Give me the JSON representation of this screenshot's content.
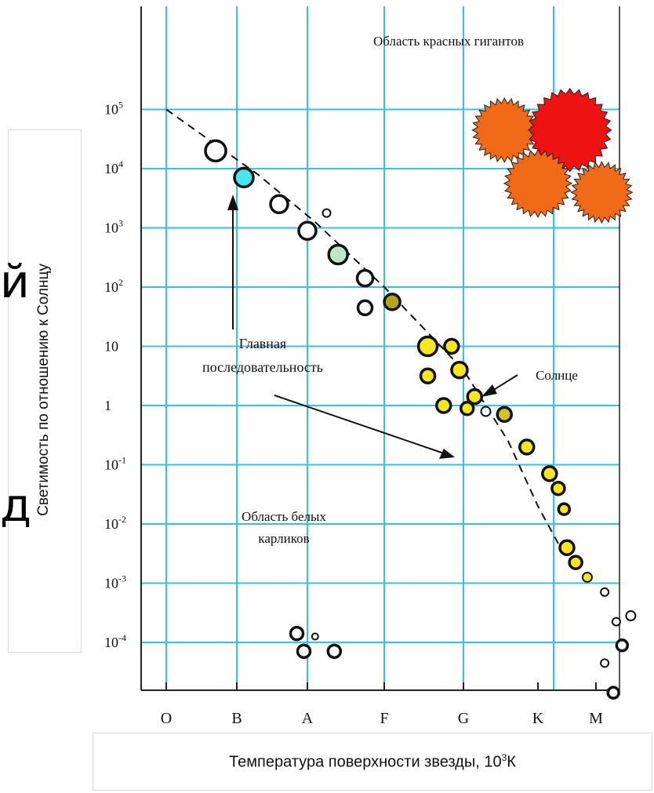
{
  "chart_data": {
    "type": "scatter",
    "title": "",
    "xlabel_main": "Температура поверхности звезды, 10",
    "xlabel_exp": "3",
    "xlabel_unit": "К",
    "ylabel": "Светимость по отношению к Солнцу",
    "x_categories": [
      "O",
      "B",
      "A",
      "F",
      "G",
      "K",
      "M"
    ],
    "y_ticks": [
      {
        "log": 5,
        "base": "10",
        "exp": "5"
      },
      {
        "log": 4,
        "base": "10",
        "exp": "4"
      },
      {
        "log": 3,
        "base": "10",
        "exp": "3"
      },
      {
        "log": 2,
        "base": "10",
        "exp": "2"
      },
      {
        "log": 1,
        "base": "10",
        "exp": ""
      },
      {
        "log": 0,
        "base": "1",
        "exp": ""
      },
      {
        "log": -1,
        "base": "10",
        "exp": "-1"
      },
      {
        "log": -2,
        "base": "10",
        "exp": "-2"
      },
      {
        "log": -3,
        "base": "10",
        "exp": "-3"
      },
      {
        "log": -4,
        "base": "10",
        "exp": "-4"
      }
    ],
    "ylim_log": [
      -5,
      5.8
    ],
    "grid": true,
    "main_sequence_line": [
      [
        0,
        5.0
      ],
      [
        1.3,
        3.9
      ],
      [
        2.1,
        3.1
      ],
      [
        3.0,
        2.0
      ],
      [
        4.0,
        0.6
      ],
      [
        4.6,
        -0.6
      ],
      [
        5.0,
        -1.7
      ],
      [
        5.5,
        -2.6
      ]
    ],
    "main_sequence_stars": [
      {
        "x": 0.7,
        "y": 4.3,
        "r": 13,
        "color": "#ffffff"
      },
      {
        "x": 1.1,
        "y": 3.85,
        "r": 12,
        "color": "#44e8ea"
      },
      {
        "x": 1.6,
        "y": 3.4,
        "r": 11,
        "color": "#ffffff"
      },
      {
        "x": 2.0,
        "y": 2.95,
        "r": 11,
        "color": "#ffffff"
      },
      {
        "x": 2.25,
        "y": 3.25,
        "r": 5,
        "color": "#ffffff"
      },
      {
        "x": 2.4,
        "y": 2.55,
        "r": 12,
        "color": "#bfe6c8"
      },
      {
        "x": 2.75,
        "y": 2.15,
        "r": 10,
        "color": "#ffffff"
      },
      {
        "x": 2.75,
        "y": 1.65,
        "r": 9,
        "color": "#ffffff"
      },
      {
        "x": 3.1,
        "y": 1.75,
        "r": 10,
        "color": "#b3a41c"
      },
      {
        "x": 3.55,
        "y": 1.0,
        "r": 12,
        "color": "#f7e51f"
      },
      {
        "x": 3.85,
        "y": 1.0,
        "r": 9,
        "color": "#f7e51f"
      },
      {
        "x": 3.55,
        "y": 0.5,
        "r": 9,
        "color": "#f7e51f"
      },
      {
        "x": 3.95,
        "y": 0.6,
        "r": 10,
        "color": "#f7e51f"
      },
      {
        "x": 3.75,
        "y": 0.0,
        "r": 9,
        "color": "#f7e51f"
      },
      {
        "x": 4.15,
        "y": 0.15,
        "r": 9,
        "color": "#f7e51f"
      },
      {
        "x": 4.05,
        "y": -0.05,
        "r": 8,
        "color": "#f7e51f"
      },
      {
        "x": 4.3,
        "y": -0.1,
        "r": 6,
        "color": "#ffffff"
      },
      {
        "x": 4.55,
        "y": -0.15,
        "r": 9,
        "color": "#cfc22a"
      },
      {
        "x": 4.85,
        "y": -0.7,
        "r": 9,
        "color": "#f7e51f"
      },
      {
        "x": 5.2,
        "y": -1.15,
        "r": 9,
        "color": "#f7e51f"
      },
      {
        "x": 5.35,
        "y": -1.4,
        "r": 8,
        "color": "#f7e51f"
      },
      {
        "x": 5.45,
        "y": -1.75,
        "r": 7,
        "color": "#f7e51f"
      },
      {
        "x": 5.5,
        "y": -2.4,
        "r": 9,
        "color": "#f7e51f"
      },
      {
        "x": 5.65,
        "y": -2.65,
        "r": 8,
        "color": "#f7e51f"
      },
      {
        "x": 5.85,
        "y": -2.9,
        "r": 6,
        "color": "#f7e51f"
      },
      {
        "x": 6.15,
        "y": -3.15,
        "r": 5,
        "color": "#ffffff"
      },
      {
        "x": 6.35,
        "y": -3.65,
        "r": 5,
        "color": "#ffffff"
      },
      {
        "x": 6.6,
        "y": -3.55,
        "r": 6,
        "color": "#ffffff"
      },
      {
        "x": 6.45,
        "y": -4.05,
        "r": 7,
        "color": "#ffffff"
      },
      {
        "x": 6.15,
        "y": -4.35,
        "r": 5,
        "color": "#ffffff"
      },
      {
        "x": 6.3,
        "y": -4.85,
        "r": 7,
        "color": "#ffffff"
      }
    ],
    "giants": [
      {
        "x": 4.55,
        "y": 4.65,
        "r": 34,
        "color": "#f06a18"
      },
      {
        "x": 5.55,
        "y": 4.65,
        "r": 46,
        "color": "#ee1212"
      },
      {
        "x": 5.0,
        "y": 3.75,
        "r": 36,
        "color": "#f06a18"
      },
      {
        "x": 6.1,
        "y": 3.6,
        "r": 32,
        "color": "#f06a18"
      }
    ],
    "white_dwarfs": [
      {
        "x": 1.85,
        "y": -3.85,
        "r": 8,
        "color": "#ffffff"
      },
      {
        "x": 2.1,
        "y": -3.9,
        "r": 4,
        "color": "#ffffff"
      },
      {
        "x": 1.95,
        "y": -4.15,
        "r": 8,
        "color": "#ffffff"
      },
      {
        "x": 2.35,
        "y": -4.15,
        "r": 8,
        "color": "#ffffff"
      }
    ],
    "annotations": {
      "red_giants": "Область красных гигантов",
      "main_sequence_line1": "Главная",
      "main_sequence_line2": "последовательность",
      "sun": "Солнце",
      "white_dwarfs_line1": "Область белых",
      "white_dwarfs_line2": "карликов"
    }
  },
  "stray_glyphs": {
    "top": "й",
    "bottom": "д"
  },
  "colors": {
    "grid": "#33c2e8",
    "axis": "#222222",
    "text": "#111111"
  }
}
